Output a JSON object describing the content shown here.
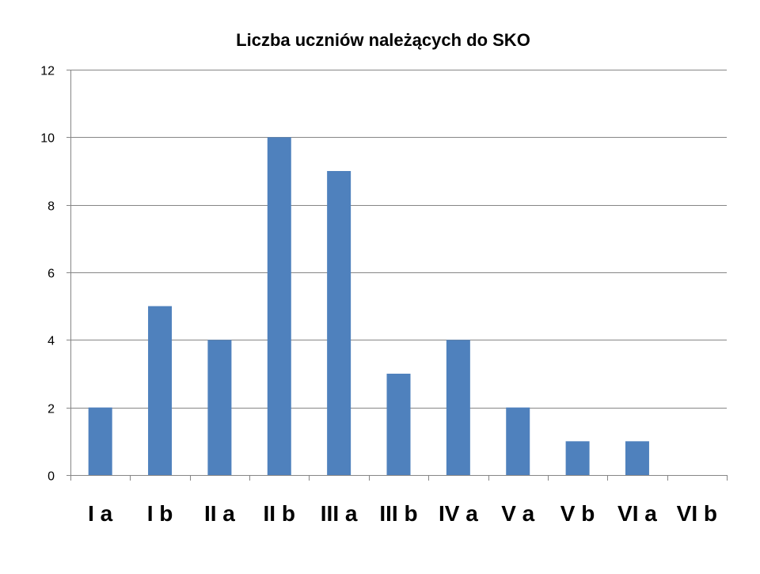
{
  "chart_data": {
    "type": "bar",
    "title": "Liczba uczniów należących do SKO",
    "xlabel": "",
    "ylabel": "",
    "categories": [
      "I a",
      "I b",
      "II a",
      "II b",
      "III a",
      "III b",
      "IV a",
      "V a",
      "V b",
      "VI a",
      "VI b"
    ],
    "values": [
      2,
      5,
      4,
      10,
      9,
      3,
      4,
      2,
      1,
      1,
      0
    ],
    "ylim": [
      0,
      12
    ],
    "yticks": [
      0,
      2,
      4,
      6,
      8,
      10,
      12
    ],
    "grid": true,
    "legend": "none",
    "bar_color": "#4F81BD",
    "grid_color": "#868686",
    "axis_color": "#868686"
  }
}
